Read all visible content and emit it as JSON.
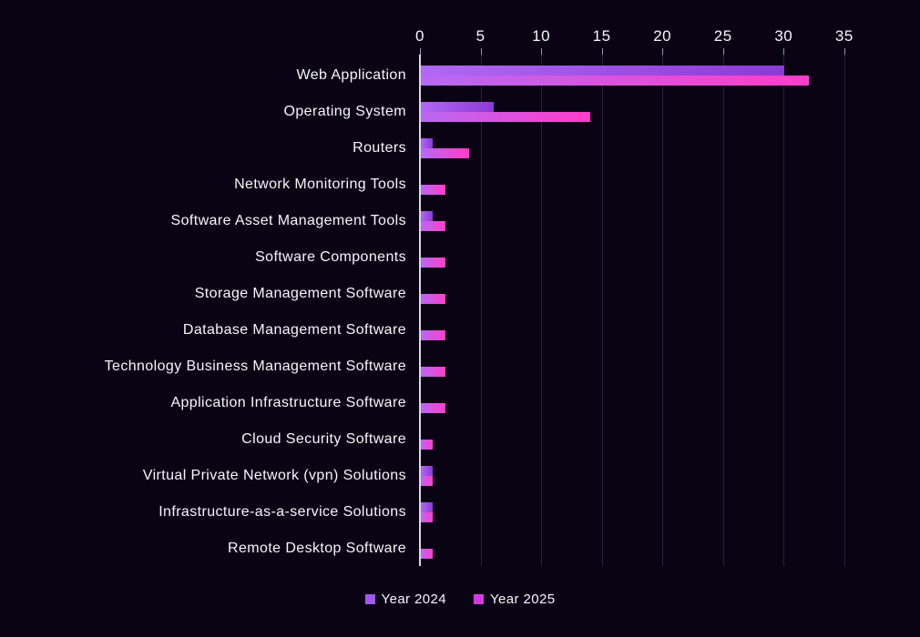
{
  "chart_data": {
    "type": "bar",
    "orientation": "horizontal",
    "title": "",
    "xlabel": "",
    "ylabel": "",
    "categories": [
      "Web Application",
      "Operating System",
      "Routers",
      "Network Monitoring Tools",
      "Software Asset Management Tools",
      "Software Components",
      "Storage Management Software",
      "Database Management Software",
      "Technology Business Management Software",
      "Application Infrastructure Software",
      "Cloud Security Software",
      "Virtual Private Network (vpn) Solutions",
      "Infrastructure-as-a-service Solutions",
      "Remote Desktop Software"
    ],
    "series": [
      {
        "name": "Year 2024",
        "values": [
          30,
          6,
          1,
          0,
          1,
          0,
          0,
          0,
          0,
          0,
          0,
          1,
          1,
          0
        ],
        "gradient_start": "#b168f4",
        "gradient_end": "#8c3ad6",
        "legend_color": "#a158ef"
      },
      {
        "name": "Year 2025",
        "values": [
          32,
          14,
          4,
          2,
          2,
          2,
          2,
          2,
          2,
          2,
          1,
          1,
          1,
          1
        ],
        "gradient_start": "#b769f2",
        "gradient_end": "#ff3dc9",
        "legend_color": "#d43ce0"
      }
    ],
    "x_ticks": [
      0,
      5,
      10,
      15,
      20,
      25,
      30,
      35
    ],
    "xlim": [
      0,
      39.4
    ],
    "grid": true,
    "legend_position": "bottom",
    "colors": {
      "background": "#0a0314",
      "gridline": "#29233a",
      "axis_line": "#dcd8e6",
      "text": "#f8f6fb"
    }
  }
}
